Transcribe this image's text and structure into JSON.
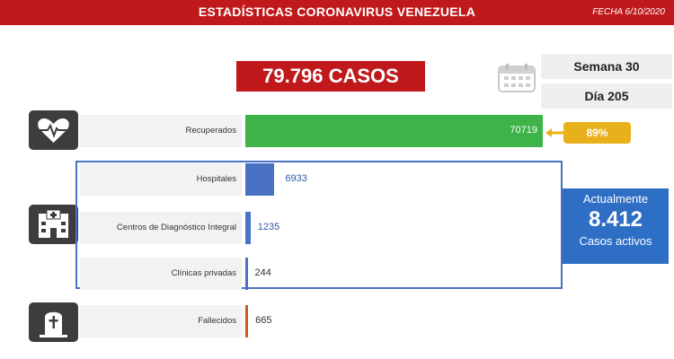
{
  "header": {
    "title": "ESTADÍSTICAS CORONAVIRUS VENEZUELA",
    "date": "FECHA 6/10/2020"
  },
  "total_cases": "79.796 CASOS",
  "calendar": {
    "icon": "calendar-icon",
    "week": "Semana 30",
    "day": "Día 205"
  },
  "colors": {
    "header": "#c0191c",
    "recovered": "#3db34a",
    "group": "#4a72c4",
    "deaths": "#c0601e",
    "badge": "#e8b01a",
    "active": "#2e6ec5"
  },
  "recovered_pct": "89%",
  "active": {
    "top": "Actualmente",
    "value": "8.412",
    "bottom": "Casos activos"
  },
  "chart_data": {
    "type": "bar",
    "orientation": "horizontal",
    "categories": [
      "Recuperados",
      "Hospitales",
      "Centros de Diagnóstico Integral",
      "Clínicas privadas",
      "Fallecidos"
    ],
    "values": [
      70719,
      6933,
      1235,
      244,
      665
    ],
    "value_labels": [
      "70719",
      "6933",
      "1235",
      "244",
      "665"
    ],
    "icons": [
      "heart-pulse-icon",
      "hospital-icon",
      "hospital-icon",
      "hospital-icon",
      "tombstone-icon"
    ]
  }
}
